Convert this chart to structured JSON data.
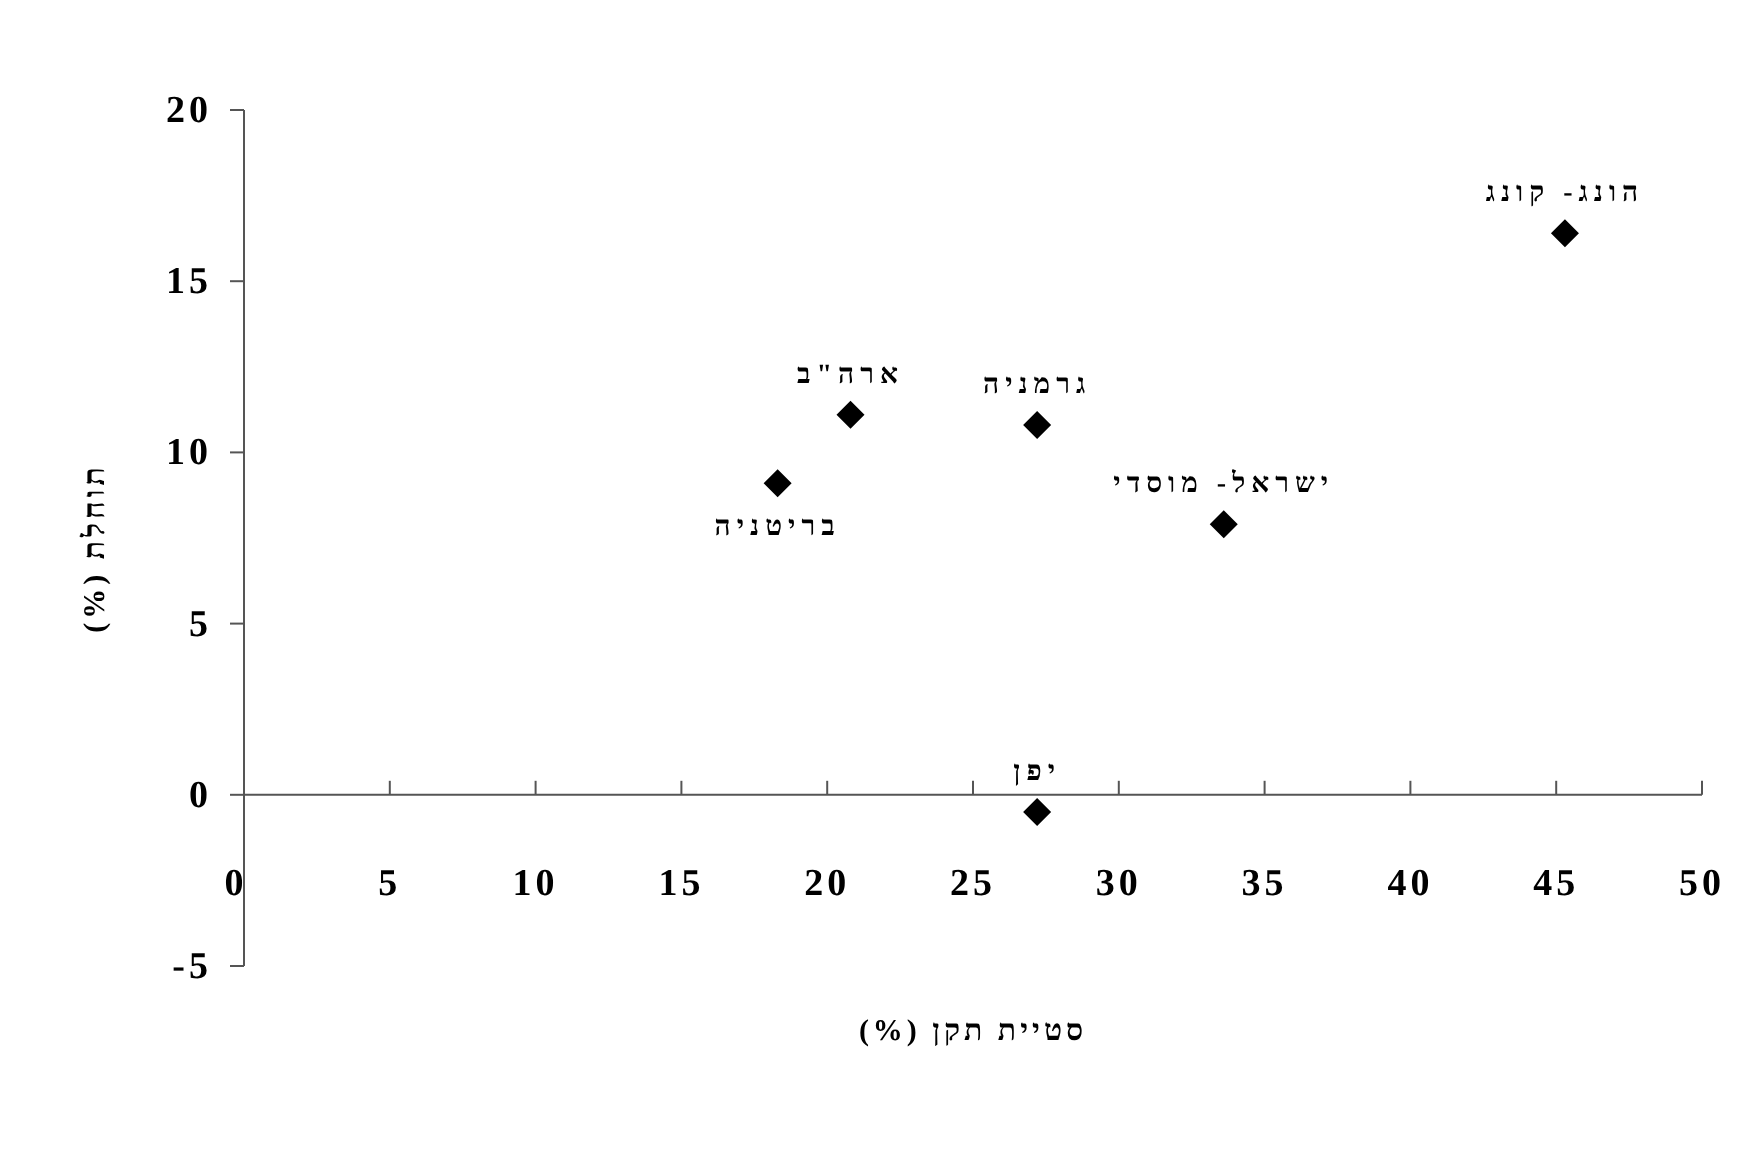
{
  "chart_data": {
    "type": "scatter",
    "xlabel": "סטיית תקן (%)",
    "ylabel": "תוחלת (%)",
    "x": [
      18.3,
      20.8,
      27.2,
      33.6,
      45.3,
      27.2
    ],
    "values": [
      9.1,
      11.1,
      10.8,
      7.9,
      16.4,
      -0.5
    ],
    "color": "#000000",
    "marker": "diamond",
    "xlim": [
      0,
      50
    ],
    "ylim": [
      -5,
      20
    ],
    "xticks": [
      0,
      5,
      10,
      15,
      20,
      25,
      30,
      35,
      40,
      45,
      50
    ],
    "yticks": [
      -5,
      0,
      5,
      10,
      15,
      20
    ],
    "grid": false,
    "annotations": [
      {
        "text": "בריטניה",
        "x": 18.3,
        "y": 9.1
      },
      {
        "text": "ארה\"ב",
        "x": 20.8,
        "y": 11.1
      },
      {
        "text": "גרמניה",
        "x": 27.2,
        "y": 10.8
      },
      {
        "text": "ישראל- מוסדי",
        "x": 33.6,
        "y": 7.9
      },
      {
        "text": "הונג- קונג",
        "x": 45.3,
        "y": 16.4
      },
      {
        "text": "יפן",
        "x": 27.2,
        "y": -0.5
      }
    ]
  }
}
